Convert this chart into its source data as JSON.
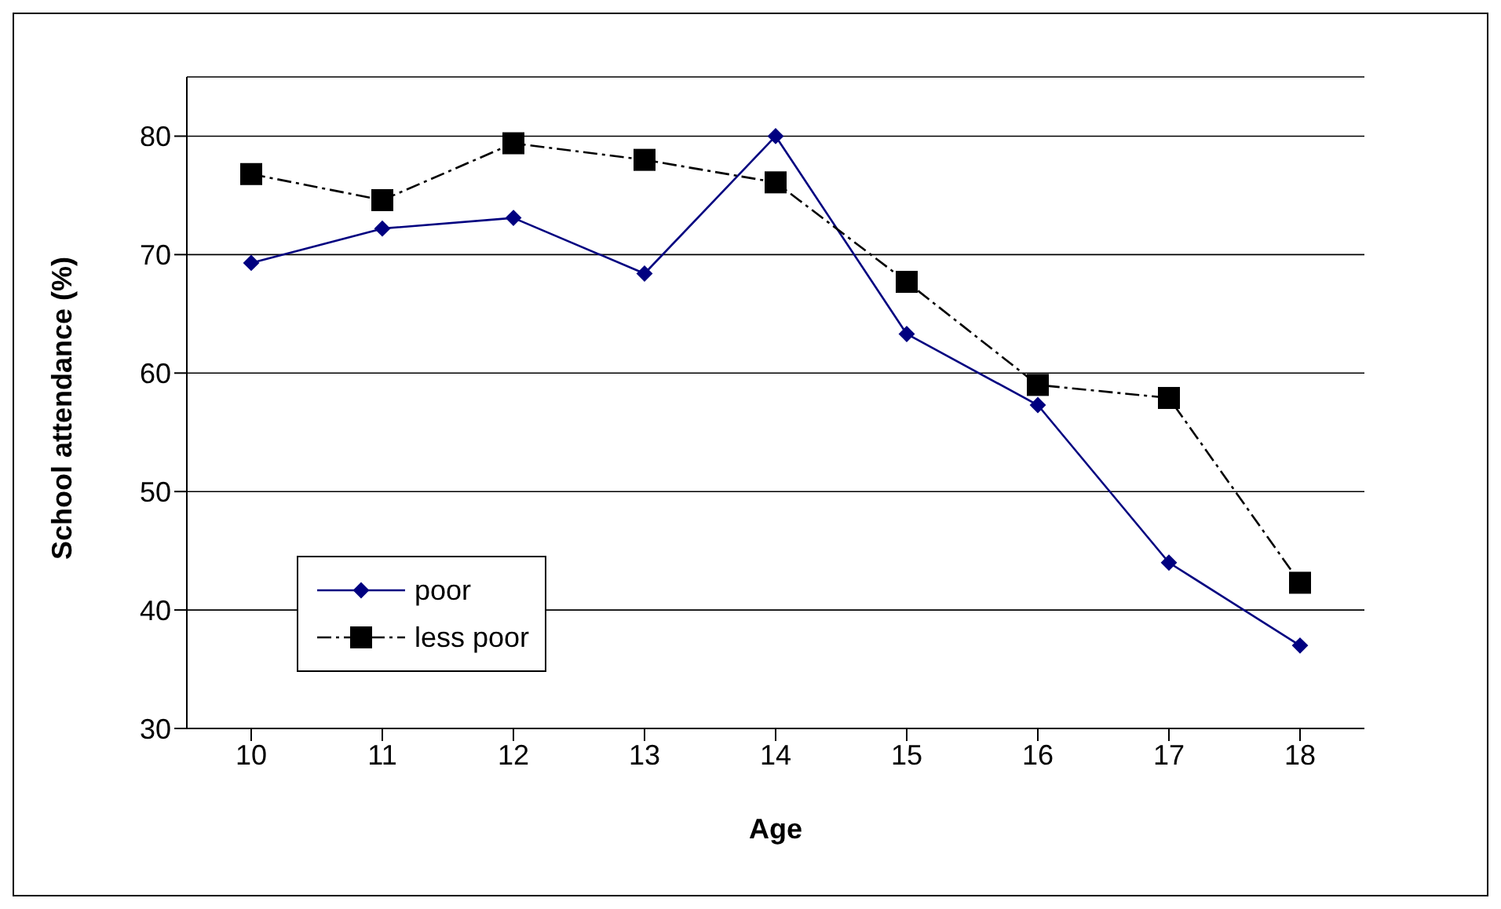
{
  "chart_data": {
    "type": "line",
    "xlabel": "Age",
    "ylabel": "School attendance (%)",
    "categories": [
      "10",
      "11",
      "12",
      "13",
      "14",
      "15",
      "16",
      "17",
      "18"
    ],
    "series": [
      {
        "name": "poor",
        "color": "#000080",
        "marker": "diamond",
        "line_style": "solid",
        "values": [
          69.3,
          72.2,
          73.1,
          68.4,
          80.0,
          63.3,
          57.3,
          44.0,
          37.0
        ]
      },
      {
        "name": "less poor",
        "color": "#000000",
        "marker": "square",
        "line_style": "dashed",
        "values": [
          76.8,
          74.6,
          79.4,
          78.0,
          76.1,
          67.7,
          59.0,
          57.9,
          42.3
        ]
      }
    ],
    "ylim": [
      30,
      85
    ],
    "yticks": [
      30,
      40,
      50,
      60,
      70,
      80
    ],
    "grid": "y",
    "legend": "bottom left"
  }
}
